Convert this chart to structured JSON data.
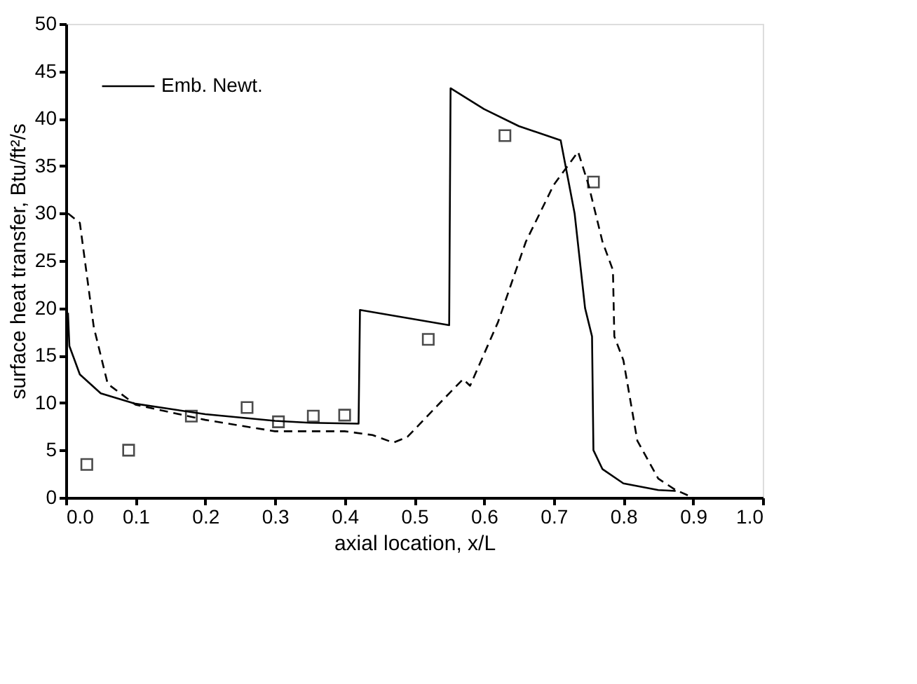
{
  "chart_data": {
    "type": "line",
    "xlabel": "axial location, x/L",
    "ylabel": "surface heat transfer, Btu/ft²/s",
    "xlim": [
      0,
      1
    ],
    "xticks": [
      {
        "value": 0,
        "label": "0.0"
      },
      0.1,
      0.2,
      0.3,
      0.4,
      0.5,
      0.6,
      0.7,
      0.8,
      0.9,
      {
        "value": 1,
        "label": "1.0"
      }
    ],
    "ylim": [
      0,
      50
    ],
    "yticks": [
      0,
      5,
      10,
      15,
      20,
      25,
      30,
      35,
      40,
      45,
      50
    ],
    "grid": false,
    "legend": "top left",
    "series": [
      {
        "name": "Emb. Newt.",
        "color": "#000000",
        "line_style": "solid",
        "marker": "none",
        "x": [
          0.003,
          0.005,
          0.02,
          0.05,
          0.1,
          0.2,
          0.3,
          0.35,
          0.42,
          0.422,
          0.55,
          0.552,
          0.6,
          0.65,
          0.71,
          0.73,
          0.745,
          0.755,
          0.757,
          0.77,
          0.8,
          0.85,
          0.875
        ],
        "values": [
          19.5,
          16,
          13,
          11,
          9.9,
          8.8,
          8.1,
          7.9,
          7.8,
          19.8,
          18.2,
          43.2,
          41,
          39.2,
          37.7,
          30,
          20,
          17,
          5,
          3,
          1.5,
          0.8,
          0.7
        ]
      },
      {
        "color": "#000000",
        "line_style": "dashed",
        "marker": "none",
        "x": [
          0.003,
          0.02,
          0.04,
          0.06,
          0.1,
          0.2,
          0.3,
          0.4,
          0.44,
          0.47,
          0.49,
          0.55,
          0.57,
          0.58,
          0.62,
          0.66,
          0.7,
          0.735,
          0.75,
          0.77,
          0.785,
          0.787,
          0.8,
          0.82,
          0.85,
          0.875,
          0.9
        ],
        "values": [
          30,
          29,
          18,
          12,
          9.8,
          8.2,
          7,
          7,
          6.6,
          5.8,
          6.4,
          11,
          12.5,
          11.8,
          18.5,
          27,
          33,
          36.5,
          33,
          27,
          24,
          17,
          14.5,
          6,
          2,
          0.8,
          0
        ]
      },
      {
        "type": "scatter",
        "color": "#000000",
        "marker": "square",
        "x": [
          0.03,
          0.09,
          0.18,
          0.26,
          0.305,
          0.355,
          0.4,
          0.52,
          0.63,
          0.757
        ],
        "values": [
          3.5,
          5,
          8.6,
          9.5,
          8,
          8.6,
          8.7,
          16.7,
          38.2,
          33.3
        ]
      }
    ]
  }
}
